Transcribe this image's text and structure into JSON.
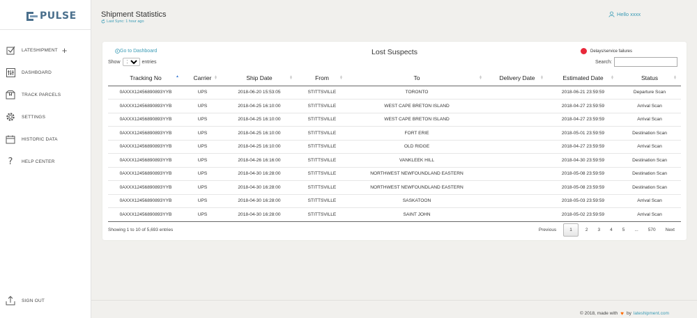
{
  "brand": {
    "name": "PULSE",
    "color": "#4a6f8c"
  },
  "sidebar": {
    "items": [
      {
        "label": "LATESHIPMENT",
        "icon": "checkbox-icon",
        "has_plus": true
      },
      {
        "label": "DASHBOARD",
        "icon": "dashboard-sliders-icon"
      },
      {
        "label": "TRACK PARCELS",
        "icon": "parcel-icon"
      },
      {
        "label": "SETTINGS",
        "icon": "gear-icon"
      },
      {
        "label": "HISTORIC DATA",
        "icon": "calendar-icon"
      },
      {
        "label": "HELP CENTER",
        "icon": "question-icon"
      }
    ],
    "signout": {
      "label": "SIGN OUT",
      "icon": "upload-icon"
    }
  },
  "header": {
    "title": "Shipment Statistics",
    "sync": "Last Sync: 1 hour ago",
    "user": "Hello xxxx"
  },
  "card": {
    "goto": "Go to Dashboard",
    "title": "Lost Suspects",
    "legend": {
      "label": "Delays/service failures",
      "color": "#e8283a"
    },
    "show_label": "Show",
    "show_value": "10",
    "entries_label": "entries",
    "search_label": "Search:",
    "search_value": ""
  },
  "table": {
    "columns": [
      "Tracking No",
      "Carrier",
      "Ship Date",
      "From",
      "To",
      "Delivery Date",
      "Estimated Date",
      "Status"
    ],
    "rows": [
      [
        "0AXXX12456890893YYB",
        "UPS",
        "2018-06-20 15:53:05",
        "STITTSVILLE",
        "TORONTO",
        "",
        "2018-06-21 23:59:59",
        "Departure Scan"
      ],
      [
        "0AXXX12456890893YYB",
        "UPS",
        "2018-04-25 16:10:00",
        "STITTSVILLE",
        "WEST CAPE BRETON ISLAND",
        "",
        "2018-04-27 23:59:59",
        "Arrival Scan"
      ],
      [
        "0AXXX12456890893YYB",
        "UPS",
        "2018-04-25 16:10:00",
        "STITTSVILLE",
        "WEST CAPE BRETON ISLAND",
        "",
        "2018-04-27 23:59:59",
        "Arrival Scan"
      ],
      [
        "0AXXX12456890893YYB",
        "UPS",
        "2018-04-25 16:10:00",
        "STITTSVILLE",
        "FORT ERIE",
        "",
        "2018-05-01 23:59:59",
        "Destination Scan"
      ],
      [
        "0AXXX12456890893YYB",
        "UPS",
        "2018-04-25 16:10:00",
        "STITTSVILLE",
        "OLD RIDGE",
        "",
        "2018-04-27 23:59:59",
        "Arrival Scan"
      ],
      [
        "0AXXX12456890893YYB",
        "UPS",
        "2018-04-26 16:16:00",
        "STITTSVILLE",
        "VANKLEEK HILL",
        "",
        "2018-04-30 23:59:59",
        "Destination Scan"
      ],
      [
        "0AXXX12456890893YYB",
        "UPS",
        "2018-04-30 16:28:00",
        "STITTSVILLE",
        "NORTHWEST NEWFOUNDLAND EASTERN",
        "",
        "2018-05-08 23:59:59",
        "Destination Scan"
      ],
      [
        "0AXXX12456890893YYB",
        "UPS",
        "2018-04-30 16:28:00",
        "STITTSVILLE",
        "NORTHWEST NEWFOUNDLAND EASTERN",
        "",
        "2018-05-08 23:59:59",
        "Destination Scan"
      ],
      [
        "0AXXX12456890893YYB",
        "UPS",
        "2018-04-30 16:28:00",
        "STITTSVILLE",
        "SASKATOON",
        "",
        "2018-05-03 23:59:59",
        "Arrival Scan"
      ],
      [
        "0AXXX12456890893YYB",
        "UPS",
        "2018-04-30 16:28:00",
        "STITTSVILLE",
        "SAINT JOHN",
        "",
        "2018-05-02 23:59:59",
        "Arrival Scan"
      ]
    ]
  },
  "pagination": {
    "info": "Showing 1 to 10 of 5,693 entries",
    "previous": "Previous",
    "pages": [
      "1",
      "2",
      "3",
      "4",
      "5",
      "...",
      "570"
    ],
    "current": "1",
    "next": "Next"
  },
  "footer": {
    "prefix": "© 2018, made with",
    "by": "by",
    "link": "lateshipment.com"
  },
  "colors": {
    "accent": "#3a9bb5",
    "heart": "#ff6a00"
  }
}
